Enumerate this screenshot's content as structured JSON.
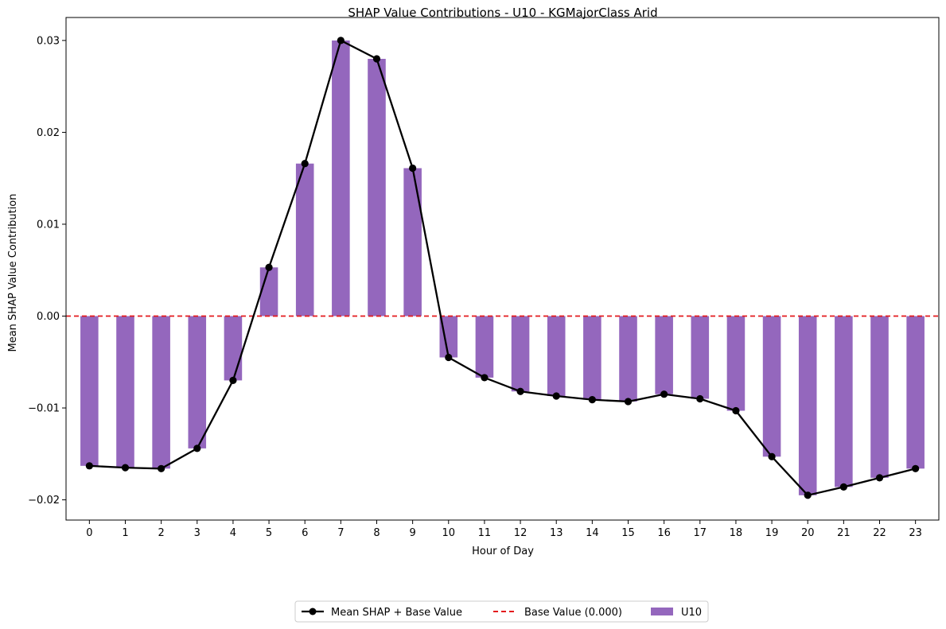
{
  "chart_data": {
    "type": "bar",
    "title": "SHAP Value Contributions - U10 - KGMajorClass Arid",
    "xlabel": "Hour of Day",
    "ylabel": "Mean SHAP Value Contribution",
    "categories": [
      "0",
      "1",
      "2",
      "3",
      "4",
      "5",
      "6",
      "7",
      "8",
      "9",
      "10",
      "11",
      "12",
      "13",
      "14",
      "15",
      "16",
      "17",
      "18",
      "19",
      "20",
      "21",
      "22",
      "23"
    ],
    "ylim": [
      -0.0222,
      0.0325
    ],
    "yticks": [
      -0.02,
      -0.01,
      0.0,
      0.01,
      0.02,
      0.03
    ],
    "ytick_labels": [
      "−0.02",
      "−0.01",
      "0.00",
      "0.01",
      "0.02",
      "0.03"
    ],
    "series": [
      {
        "name": "U10",
        "kind": "bar",
        "color": "#9467bd",
        "values": [
          -0.0163,
          -0.0165,
          -0.0166,
          -0.0144,
          -0.007,
          0.0053,
          0.0166,
          0.03,
          0.028,
          0.0161,
          -0.0045,
          -0.0067,
          -0.0082,
          -0.0087,
          -0.0091,
          -0.0093,
          -0.0085,
          -0.009,
          -0.0103,
          -0.0153,
          -0.0195,
          -0.0186,
          -0.0176,
          -0.0166
        ]
      },
      {
        "name": "Mean SHAP + Base Value",
        "kind": "line",
        "color": "#000000",
        "values": [
          -0.0163,
          -0.0165,
          -0.0166,
          -0.0144,
          -0.007,
          0.0053,
          0.0166,
          0.03,
          0.028,
          0.0161,
          -0.0045,
          -0.0067,
          -0.0082,
          -0.0087,
          -0.0091,
          -0.0093,
          -0.0085,
          -0.009,
          -0.0103,
          -0.0153,
          -0.0195,
          -0.0186,
          -0.0176,
          -0.0166
        ]
      }
    ],
    "base_line": {
      "name": "Base Value (0.000)",
      "value": 0.0,
      "color": "#e41a1c",
      "style": "dashed"
    },
    "legend": {
      "placement": "bottom-center",
      "entries": [
        "Mean SHAP + Base Value",
        "Base Value (0.000)",
        "U10"
      ]
    },
    "grid": false
  }
}
